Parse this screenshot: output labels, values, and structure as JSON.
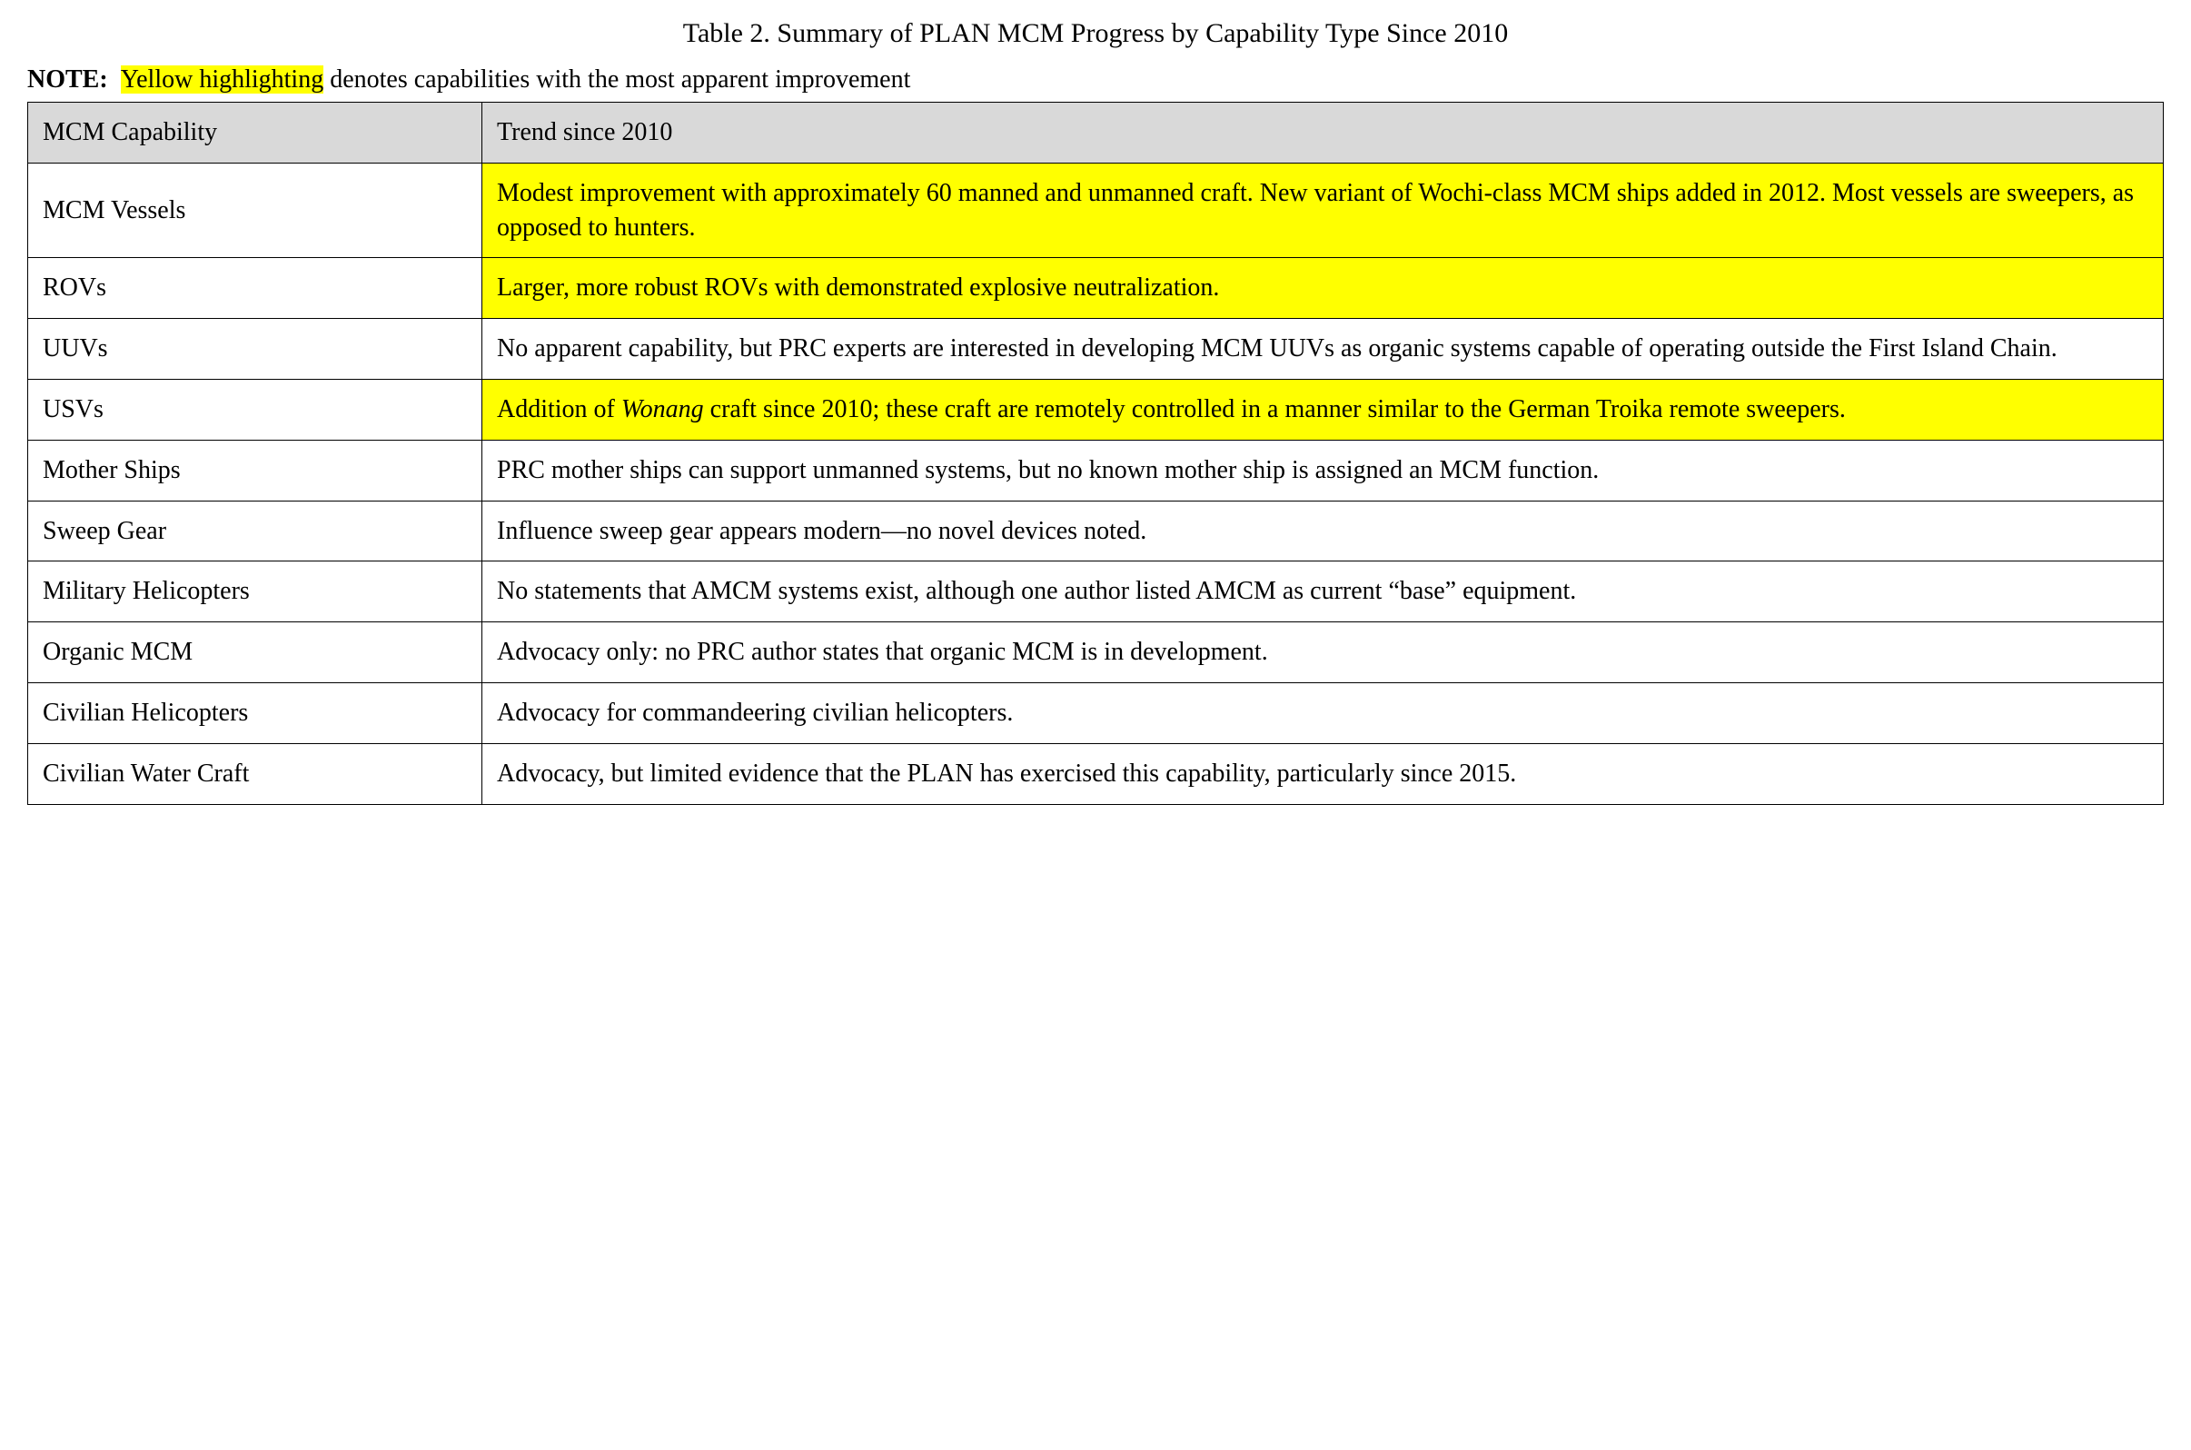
{
  "title": "Table 2. Summary of PLAN MCM Progress by Capability Type Since 2010",
  "note": {
    "prefix": "NOTE:",
    "highlight_text": "Yellow highlighting",
    "suffix": " denotes capabilities with the most apparent improvement"
  },
  "colors": {
    "header_bg": "#d9d9d9",
    "highlight_bg": "#ffff00",
    "border": "#000000",
    "text": "#000000",
    "page_bg": "#ffffff"
  },
  "typography": {
    "family": "Times New Roman",
    "title_size_pt": 15,
    "body_size_pt": 14
  },
  "table": {
    "columns": [
      "MCM Capability",
      "Trend since 2010"
    ],
    "rows": [
      {
        "capability": "MCM Vessels",
        "trend": "Modest improvement with approximately 60 manned and unmanned craft. New variant of Wochi-class MCM ships added in 2012. Most vessels are sweepers, as opposed to hunters.",
        "highlighted": true
      },
      {
        "capability": "ROVs",
        "trend": "Larger, more robust ROVs with demonstrated explosive neutralization.",
        "highlighted": true
      },
      {
        "capability": "UUVs",
        "trend": "No apparent capability, but PRC experts are interested in developing MCM UUVs as organic systems capable of operating outside the First Island Chain.",
        "highlighted": false
      },
      {
        "capability": "USVs",
        "trend_pre": "Addition of ",
        "trend_italic": "Wonang",
        "trend_post": " craft since 2010; these craft are remotely controlled in a manner similar to the German Troika remote sweepers.",
        "highlighted": true
      },
      {
        "capability": "Mother Ships",
        "trend": "PRC mother ships can support unmanned systems, but no known mother ship is assigned an MCM function.",
        "highlighted": false
      },
      {
        "capability": "Sweep Gear",
        "trend": "Influence sweep gear appears modern—no novel devices noted.",
        "highlighted": false
      },
      {
        "capability": "Military Helicopters",
        "trend": "No statements that AMCM systems exist, although one author listed AMCM as current “base” equipment.",
        "highlighted": false
      },
      {
        "capability": "Organic MCM",
        "trend": "Advocacy only: no PRC author states that organic MCM is in development.",
        "highlighted": false
      },
      {
        "capability": "Civilian Helicopters",
        "trend": "Advocacy for commandeering civilian helicopters.",
        "highlighted": false
      },
      {
        "capability": "Civilian Water Craft",
        "trend": "Advocacy, but limited evidence that the PLAN has exercised this capability, particularly since 2015.",
        "highlighted": false
      }
    ]
  }
}
